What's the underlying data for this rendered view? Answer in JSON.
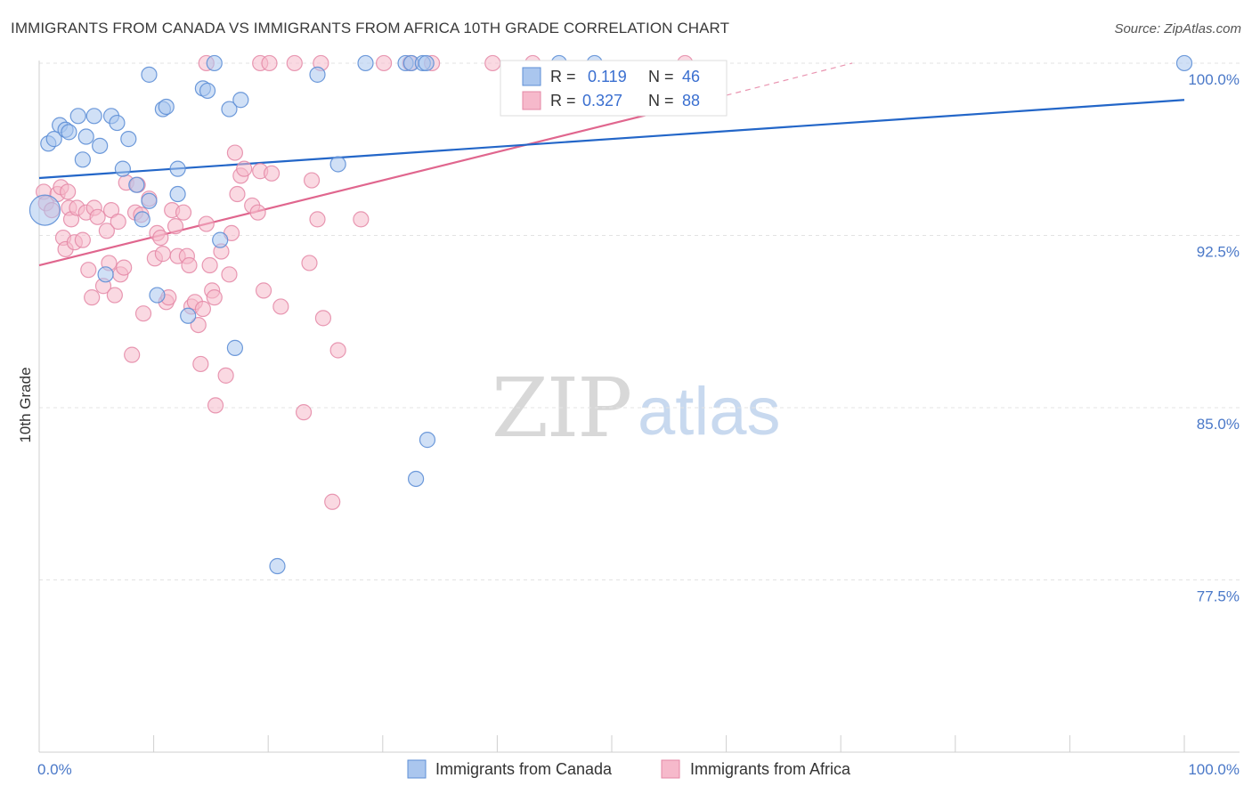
{
  "title": "IMMIGRANTS FROM CANADA VS IMMIGRANTS FROM AFRICA 10TH GRADE CORRELATION CHART",
  "source": "Source: ZipAtlas.com",
  "watermark": {
    "zip": "ZIP",
    "atlas": "atlas"
  },
  "colors": {
    "canada_fill": "#aac6ee",
    "canada_stroke": "#5e8fd6",
    "canada_line": "#2366c8",
    "africa_fill": "#f6b9cb",
    "africa_stroke": "#e487a6",
    "africa_line": "#e0668e",
    "grid": "#e3e3e3",
    "axis": "#cfcfcf",
    "tick_text": "#4a78c8"
  },
  "legend": {
    "rows": [
      {
        "r_label": "R =",
        "r_value": "0.119",
        "n_label": "N =",
        "n_value": "46"
      },
      {
        "r_label": "R =",
        "r_value": "0.327",
        "n_label": "N =",
        "n_value": "88"
      }
    ]
  },
  "chart_data": {
    "type": "scatter",
    "title": "IMMIGRANTS FROM CANADA VS IMMIGRANTS FROM AFRICA 10TH GRADE CORRELATION CHART",
    "xlabel": "",
    "ylabel": "10th Grade",
    "xlim": [
      0,
      100
    ],
    "ylim": [
      70,
      101.2
    ],
    "x_tick_labels": [
      "0.0%",
      "100.0%"
    ],
    "y_ticks": [
      77.5,
      85.0,
      92.5,
      100.0
    ],
    "y_tick_labels": [
      "77.5%",
      "85.0%",
      "92.5%",
      "100.0%"
    ],
    "x_minor_ticks": [
      0,
      10,
      20,
      30,
      40,
      50,
      60,
      70,
      80,
      90,
      100
    ],
    "legend_position": "top-center",
    "series": [
      {
        "name": "Immigrants from Canada",
        "r": 0.119,
        "n": 46,
        "trend": {
          "x0": 0,
          "y0": 95.0,
          "x1": 100,
          "y1": 98.4
        },
        "points": [
          [
            0.5,
            93.6
          ],
          [
            0.8,
            96.5
          ],
          [
            1.3,
            96.7
          ],
          [
            1.8,
            97.3
          ],
          [
            2.3,
            97.1
          ],
          [
            2.6,
            97.0
          ],
          [
            3.4,
            97.7
          ],
          [
            3.8,
            95.8
          ],
          [
            4.1,
            96.8
          ],
          [
            4.8,
            97.7
          ],
          [
            5.3,
            96.4
          ],
          [
            6.3,
            97.7
          ],
          [
            6.8,
            97.4
          ],
          [
            7.3,
            95.4
          ],
          [
            7.8,
            96.7
          ],
          [
            8.5,
            94.7
          ],
          [
            9.0,
            93.2
          ],
          [
            9.6,
            94.0
          ],
          [
            9.6,
            99.5
          ],
          [
            10.8,
            98.0
          ],
          [
            11.1,
            98.1
          ],
          [
            12.1,
            95.4
          ],
          [
            12.1,
            94.3
          ],
          [
            13.0,
            89.0
          ],
          [
            14.3,
            98.9
          ],
          [
            14.7,
            98.8
          ],
          [
            15.3,
            100.0
          ],
          [
            15.8,
            92.3
          ],
          [
            16.6,
            98.0
          ],
          [
            17.1,
            87.6
          ],
          [
            17.6,
            98.4
          ],
          [
            20.8,
            78.1
          ],
          [
            24.3,
            99.5
          ],
          [
            26.1,
            95.6
          ],
          [
            28.5,
            100.0
          ],
          [
            32.0,
            100.0
          ],
          [
            32.5,
            100.0
          ],
          [
            33.5,
            100.0
          ],
          [
            33.8,
            100.0
          ],
          [
            32.9,
            81.9
          ],
          [
            33.9,
            83.6
          ],
          [
            45.4,
            100.0
          ],
          [
            48.5,
            100.0
          ],
          [
            10.3,
            89.9
          ],
          [
            5.8,
            90.8
          ],
          [
            100.0,
            100.0
          ]
        ]
      },
      {
        "name": "Immigrants from Africa",
        "r": 0.327,
        "n": 88,
        "trend": {
          "x0": 0,
          "y0": 91.2,
          "x1": 60,
          "y1": 98.6
        },
        "trend_dashed": {
          "x0": 60,
          "y0": 98.6,
          "x1": 71,
          "y1": 100.0
        },
        "points": [
          [
            0.4,
            94.4
          ],
          [
            0.6,
            93.9
          ],
          [
            1.1,
            93.6
          ],
          [
            1.6,
            94.3
          ],
          [
            1.9,
            94.6
          ],
          [
            2.1,
            92.4
          ],
          [
            2.3,
            91.9
          ],
          [
            2.5,
            94.4
          ],
          [
            2.6,
            93.7
          ],
          [
            2.8,
            93.2
          ],
          [
            3.1,
            92.2
          ],
          [
            3.3,
            93.7
          ],
          [
            3.8,
            92.3
          ],
          [
            4.1,
            93.5
          ],
          [
            4.3,
            91.0
          ],
          [
            4.6,
            89.8
          ],
          [
            4.8,
            93.7
          ],
          [
            5.1,
            93.3
          ],
          [
            5.6,
            90.3
          ],
          [
            5.9,
            92.7
          ],
          [
            6.1,
            91.3
          ],
          [
            6.3,
            93.6
          ],
          [
            6.6,
            89.9
          ],
          [
            6.9,
            93.1
          ],
          [
            7.1,
            90.8
          ],
          [
            7.4,
            91.1
          ],
          [
            7.6,
            94.8
          ],
          [
            8.1,
            87.3
          ],
          [
            8.4,
            93.5
          ],
          [
            8.6,
            94.7
          ],
          [
            8.9,
            93.4
          ],
          [
            9.1,
            89.1
          ],
          [
            9.6,
            94.1
          ],
          [
            10.1,
            91.5
          ],
          [
            10.3,
            92.6
          ],
          [
            10.6,
            92.4
          ],
          [
            10.8,
            91.7
          ],
          [
            11.1,
            89.6
          ],
          [
            11.3,
            89.8
          ],
          [
            11.6,
            93.6
          ],
          [
            11.9,
            92.9
          ],
          [
            12.1,
            91.6
          ],
          [
            12.6,
            93.5
          ],
          [
            12.9,
            91.6
          ],
          [
            13.1,
            91.2
          ],
          [
            13.3,
            89.4
          ],
          [
            13.6,
            89.6
          ],
          [
            13.9,
            88.6
          ],
          [
            14.1,
            86.9
          ],
          [
            14.3,
            89.3
          ],
          [
            14.6,
            93.0
          ],
          [
            14.9,
            91.2
          ],
          [
            15.1,
            90.1
          ],
          [
            15.3,
            89.8
          ],
          [
            15.4,
            85.1
          ],
          [
            15.9,
            91.8
          ],
          [
            16.3,
            86.4
          ],
          [
            16.6,
            90.8
          ],
          [
            16.8,
            92.6
          ],
          [
            17.1,
            96.1
          ],
          [
            17.3,
            94.3
          ],
          [
            17.6,
            95.1
          ],
          [
            17.9,
            95.4
          ],
          [
            18.6,
            93.8
          ],
          [
            19.1,
            93.5
          ],
          [
            19.3,
            95.3
          ],
          [
            19.6,
            90.1
          ],
          [
            20.3,
            95.2
          ],
          [
            21.1,
            89.4
          ],
          [
            23.1,
            84.8
          ],
          [
            23.6,
            91.3
          ],
          [
            23.8,
            94.9
          ],
          [
            24.3,
            93.2
          ],
          [
            24.8,
            88.9
          ],
          [
            26.1,
            87.5
          ],
          [
            25.6,
            80.9
          ],
          [
            28.1,
            93.2
          ],
          [
            14.6,
            100.0
          ],
          [
            19.3,
            100.0
          ],
          [
            20.1,
            100.0
          ],
          [
            22.3,
            100.0
          ],
          [
            24.6,
            100.0
          ],
          [
            30.1,
            100.0
          ],
          [
            32.4,
            100.0
          ],
          [
            34.3,
            100.0
          ],
          [
            39.6,
            100.0
          ],
          [
            43.1,
            100.0
          ],
          [
            56.4,
            100.0
          ]
        ]
      }
    ]
  },
  "bottom_legend": [
    "Immigrants from Canada",
    "Immigrants from Africa"
  ]
}
